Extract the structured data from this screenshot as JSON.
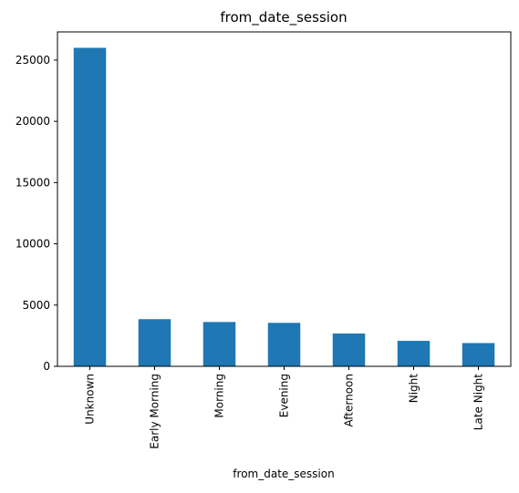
{
  "chart_data": {
    "type": "bar",
    "title": "from_date_session",
    "xlabel": "from_date_session",
    "ylabel": "",
    "categories": [
      "Unknown",
      "Early Morning",
      "Morning",
      "Evening",
      "Afternoon",
      "Night",
      "Late Night"
    ],
    "values": [
      26000,
      3850,
      3620,
      3550,
      2680,
      2080,
      1900
    ],
    "ylim": [
      0,
      27300
    ],
    "yticks": [
      0,
      5000,
      10000,
      15000,
      20000,
      25000
    ],
    "bar_color": "#1f77b4",
    "grid": false,
    "legend": "none"
  }
}
